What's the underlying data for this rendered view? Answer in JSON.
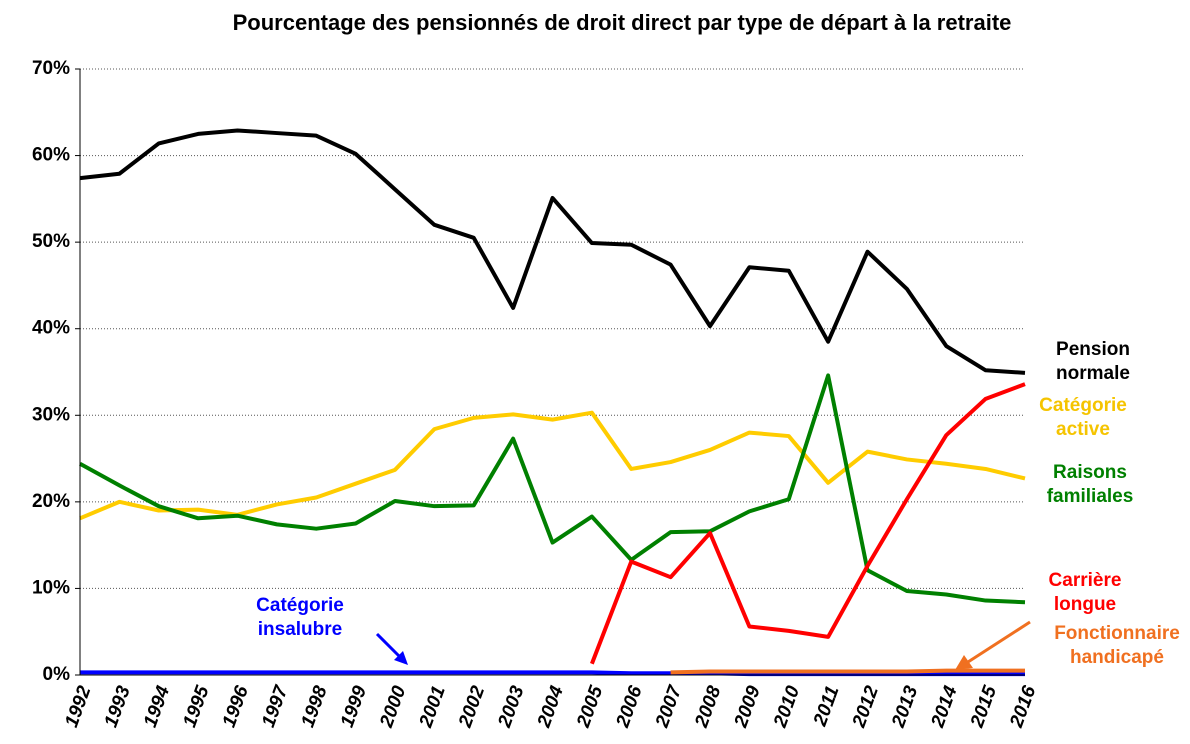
{
  "chart_data": {
    "type": "line",
    "title": "Pourcentage des pensionnés de droit direct par type de départ à la retraite",
    "categories": [
      "1992",
      "1993",
      "1994",
      "1995",
      "1996",
      "1997",
      "1998",
      "1999",
      "2000",
      "2001",
      "2002",
      "2003",
      "2004",
      "2005",
      "2006",
      "2007",
      "2008",
      "2009",
      "2010",
      "2011",
      "2012",
      "2013",
      "2014",
      "2015",
      "2016"
    ],
    "ylim": [
      0,
      70
    ],
    "yticks": [
      {
        "value": 0,
        "label": "0%"
      },
      {
        "value": 10,
        "label": "10%"
      },
      {
        "value": 20,
        "label": "20%"
      },
      {
        "value": 30,
        "label": "30%"
      },
      {
        "value": 40,
        "label": "40%"
      },
      {
        "value": 50,
        "label": "50%"
      },
      {
        "value": 60,
        "label": "60%"
      },
      {
        "value": 70,
        "label": "70%"
      }
    ],
    "grid": true,
    "series": [
      {
        "name": "Pension normale",
        "color": "#000000",
        "values": [
          57.4,
          57.9,
          61.4,
          62.5,
          62.9,
          62.6,
          62.3,
          60.2,
          56.1,
          52.0,
          50.5,
          42.4,
          55.1,
          49.9,
          49.7,
          47.4,
          40.3,
          47.1,
          46.7,
          38.5,
          48.9,
          44.6,
          38.0,
          35.2,
          34.9
        ]
      },
      {
        "name": "Catégorie active",
        "color": "#ffcc00",
        "values": [
          18.1,
          20.0,
          19.0,
          19.1,
          18.5,
          19.7,
          20.5,
          22.1,
          23.7,
          28.4,
          29.7,
          30.1,
          29.5,
          30.3,
          23.8,
          24.6,
          26.0,
          28.0,
          27.6,
          22.2,
          25.8,
          24.9,
          24.4,
          23.8,
          22.7
        ]
      },
      {
        "name": "Raisons familiales",
        "color": "#008000",
        "values": [
          24.4,
          21.9,
          19.5,
          18.1,
          18.4,
          17.4,
          16.9,
          17.5,
          20.1,
          19.5,
          19.6,
          27.3,
          15.3,
          18.3,
          13.3,
          16.5,
          16.6,
          18.9,
          20.3,
          34.6,
          12.1,
          9.7,
          9.3,
          8.6,
          8.4
        ]
      },
      {
        "name": "Carrière longue",
        "color": "#ff0000",
        "values": [
          null,
          null,
          null,
          null,
          null,
          null,
          null,
          null,
          null,
          null,
          null,
          null,
          null,
          1.3,
          13.1,
          11.3,
          16.4,
          5.6,
          5.1,
          4.4,
          12.6,
          20.3,
          27.7,
          31.9,
          33.6
        ]
      },
      {
        "name": "Catégorie insalubre",
        "color": "#0000ff",
        "values": [
          0.3,
          0.3,
          0.3,
          0.3,
          0.3,
          0.3,
          0.3,
          0.3,
          0.3,
          0.3,
          0.3,
          0.3,
          0.3,
          0.3,
          0.2,
          0.2,
          0.2,
          0.1,
          0.1,
          0.1,
          0.1,
          0.1,
          0.1,
          0.1,
          0.1
        ]
      },
      {
        "name": "Fonctionnaire handicapé",
        "color": "#f07020",
        "values": [
          null,
          null,
          null,
          null,
          null,
          null,
          null,
          null,
          null,
          null,
          null,
          null,
          null,
          null,
          null,
          0.3,
          0.4,
          0.4,
          0.4,
          0.4,
          0.4,
          0.4,
          0.5,
          0.5,
          0.5
        ]
      }
    ]
  }
}
